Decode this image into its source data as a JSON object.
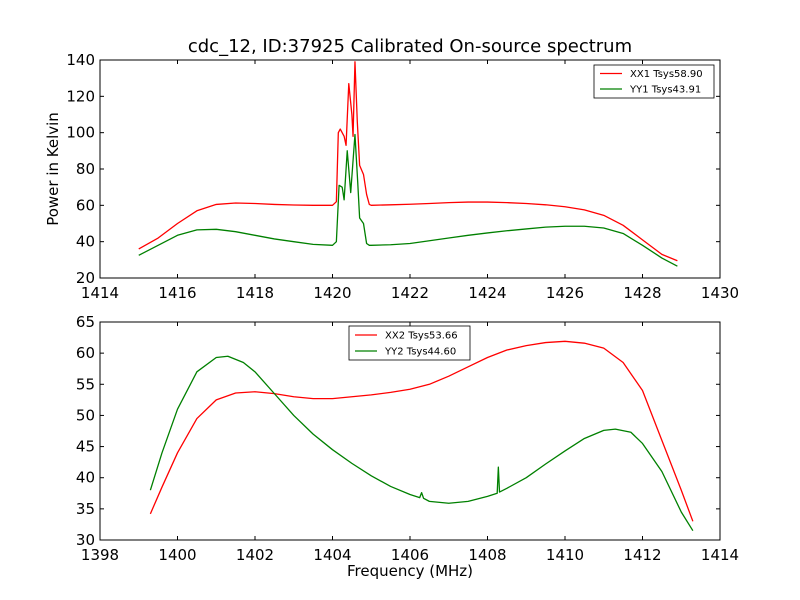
{
  "chart_data": [
    {
      "type": "line",
      "title": "cdc_12, ID:37925 Calibrated On-source spectrum",
      "xlabel": "",
      "ylabel": "Power in Kelvin",
      "xlim": [
        1414,
        1430
      ],
      "ylim": [
        20,
        140
      ],
      "xticks": [
        1414,
        1416,
        1418,
        1420,
        1422,
        1424,
        1426,
        1428,
        1430
      ],
      "yticks": [
        20,
        40,
        60,
        80,
        100,
        120,
        140
      ],
      "grid": false,
      "legend_position": "top-right",
      "series": [
        {
          "name": "XX1 Tsys58.90",
          "color": "#ff0000",
          "points": [
            [
              1415.0,
              36
            ],
            [
              1415.5,
              42
            ],
            [
              1416.0,
              50
            ],
            [
              1416.5,
              57
            ],
            [
              1417.0,
              60.5
            ],
            [
              1417.5,
              61.3
            ],
            [
              1418.0,
              61
            ],
            [
              1418.5,
              60.5
            ],
            [
              1419.0,
              60.2
            ],
            [
              1419.5,
              60
            ],
            [
              1420.0,
              60
            ],
            [
              1420.1,
              62
            ],
            [
              1420.15,
              100
            ],
            [
              1420.2,
              102
            ],
            [
              1420.3,
              98
            ],
            [
              1420.35,
              93
            ],
            [
              1420.42,
              127
            ],
            [
              1420.5,
              110
            ],
            [
              1420.53,
              98
            ],
            [
              1420.58,
              139
            ],
            [
              1420.64,
              106
            ],
            [
              1420.7,
              82
            ],
            [
              1420.8,
              77
            ],
            [
              1420.88,
              66
            ],
            [
              1420.95,
              60.5
            ],
            [
              1421.0,
              60
            ],
            [
              1421.5,
              60.3
            ],
            [
              1422.0,
              60.6
            ],
            [
              1422.5,
              61
            ],
            [
              1423.0,
              61.5
            ],
            [
              1423.5,
              61.8
            ],
            [
              1424.0,
              61.8
            ],
            [
              1424.5,
              61.5
            ],
            [
              1425.0,
              61
            ],
            [
              1425.5,
              60.3
            ],
            [
              1426.0,
              59.2
            ],
            [
              1426.5,
              57.5
            ],
            [
              1427.0,
              54.5
            ],
            [
              1427.5,
              49
            ],
            [
              1428.0,
              41
            ],
            [
              1428.5,
              33
            ],
            [
              1428.9,
              29.5
            ]
          ]
        },
        {
          "name": "YY1 Tsys43.91",
          "color": "#008000",
          "points": [
            [
              1415.0,
              32.5
            ],
            [
              1415.5,
              38
            ],
            [
              1416.0,
              43.5
            ],
            [
              1416.5,
              46.5
            ],
            [
              1417.0,
              46.8
            ],
            [
              1417.5,
              45.5
            ],
            [
              1418.0,
              43.5
            ],
            [
              1418.5,
              41.5
            ],
            [
              1419.0,
              40
            ],
            [
              1419.5,
              38.5
            ],
            [
              1420.0,
              38
            ],
            [
              1420.1,
              40
            ],
            [
              1420.17,
              71
            ],
            [
              1420.25,
              70
            ],
            [
              1420.3,
              63
            ],
            [
              1420.38,
              90
            ],
            [
              1420.47,
              67
            ],
            [
              1420.58,
              99
            ],
            [
              1420.65,
              73
            ],
            [
              1420.7,
              53
            ],
            [
              1420.8,
              50
            ],
            [
              1420.88,
              39
            ],
            [
              1420.95,
              38
            ],
            [
              1421.0,
              38
            ],
            [
              1421.5,
              38.3
            ],
            [
              1422.0,
              39
            ],
            [
              1422.5,
              40.5
            ],
            [
              1423.0,
              42
            ],
            [
              1423.5,
              43.5
            ],
            [
              1424.0,
              44.8
            ],
            [
              1424.5,
              46
            ],
            [
              1425.0,
              47
            ],
            [
              1425.5,
              48
            ],
            [
              1426.0,
              48.5
            ],
            [
              1426.5,
              48.5
            ],
            [
              1427.0,
              47.5
            ],
            [
              1427.5,
              44.5
            ],
            [
              1428.0,
              38
            ],
            [
              1428.5,
              31
            ],
            [
              1428.9,
              26.5
            ]
          ]
        }
      ]
    },
    {
      "type": "line",
      "title": "",
      "xlabel": "Frequency (MHz)",
      "ylabel": "",
      "xlim": [
        1398,
        1414
      ],
      "ylim": [
        30,
        65
      ],
      "xticks": [
        1398,
        1400,
        1402,
        1404,
        1406,
        1408,
        1410,
        1412,
        1414
      ],
      "yticks": [
        30,
        35,
        40,
        45,
        50,
        55,
        60,
        65
      ],
      "grid": false,
      "legend_position": "top-center",
      "series": [
        {
          "name": "XX2 Tsys53.66",
          "color": "#ff0000",
          "points": [
            [
              1399.3,
              34.2
            ],
            [
              1399.6,
              38.5
            ],
            [
              1400.0,
              44
            ],
            [
              1400.5,
              49.5
            ],
            [
              1401.0,
              52.5
            ],
            [
              1401.5,
              53.6
            ],
            [
              1402.0,
              53.8
            ],
            [
              1402.5,
              53.5
            ],
            [
              1403.0,
              53
            ],
            [
              1403.5,
              52.7
            ],
            [
              1404.0,
              52.7
            ],
            [
              1404.5,
              53
            ],
            [
              1405.0,
              53.3
            ],
            [
              1405.5,
              53.7
            ],
            [
              1406.0,
              54.2
            ],
            [
              1406.5,
              55
            ],
            [
              1407.0,
              56.3
            ],
            [
              1407.5,
              57.8
            ],
            [
              1408.0,
              59.3
            ],
            [
              1408.5,
              60.5
            ],
            [
              1409.0,
              61.2
            ],
            [
              1409.5,
              61.7
            ],
            [
              1410.0,
              61.9
            ],
            [
              1410.5,
              61.6
            ],
            [
              1411.0,
              60.8
            ],
            [
              1411.5,
              58.5
            ],
            [
              1412.0,
              54
            ],
            [
              1412.5,
              46
            ],
            [
              1413.0,
              38
            ],
            [
              1413.3,
              33
            ]
          ]
        },
        {
          "name": "YY2 Tsys44.60",
          "color": "#008000",
          "points": [
            [
              1399.3,
              38
            ],
            [
              1399.6,
              44
            ],
            [
              1400.0,
              51
            ],
            [
              1400.5,
              57
            ],
            [
              1401.0,
              59.3
            ],
            [
              1401.3,
              59.5
            ],
            [
              1401.7,
              58.5
            ],
            [
              1402.0,
              57
            ],
            [
              1402.5,
              53.5
            ],
            [
              1403.0,
              50
            ],
            [
              1403.5,
              47
            ],
            [
              1404.0,
              44.5
            ],
            [
              1404.5,
              42.3
            ],
            [
              1405.0,
              40.3
            ],
            [
              1405.5,
              38.6
            ],
            [
              1406.0,
              37.3
            ],
            [
              1406.25,
              36.8
            ],
            [
              1406.3,
              37.6
            ],
            [
              1406.35,
              36.7
            ],
            [
              1406.5,
              36.2
            ],
            [
              1407.0,
              35.9
            ],
            [
              1407.5,
              36.2
            ],
            [
              1408.0,
              37
            ],
            [
              1408.25,
              37.5
            ],
            [
              1408.28,
              41.7
            ],
            [
              1408.31,
              37.7
            ],
            [
              1408.5,
              38.3
            ],
            [
              1409.0,
              40
            ],
            [
              1409.5,
              42.2
            ],
            [
              1410.0,
              44.3
            ],
            [
              1410.5,
              46.3
            ],
            [
              1411.0,
              47.6
            ],
            [
              1411.3,
              47.8
            ],
            [
              1411.7,
              47.3
            ],
            [
              1412.0,
              45.5
            ],
            [
              1412.5,
              41
            ],
            [
              1413.0,
              34.5
            ],
            [
              1413.3,
              31.5
            ]
          ]
        }
      ]
    }
  ]
}
